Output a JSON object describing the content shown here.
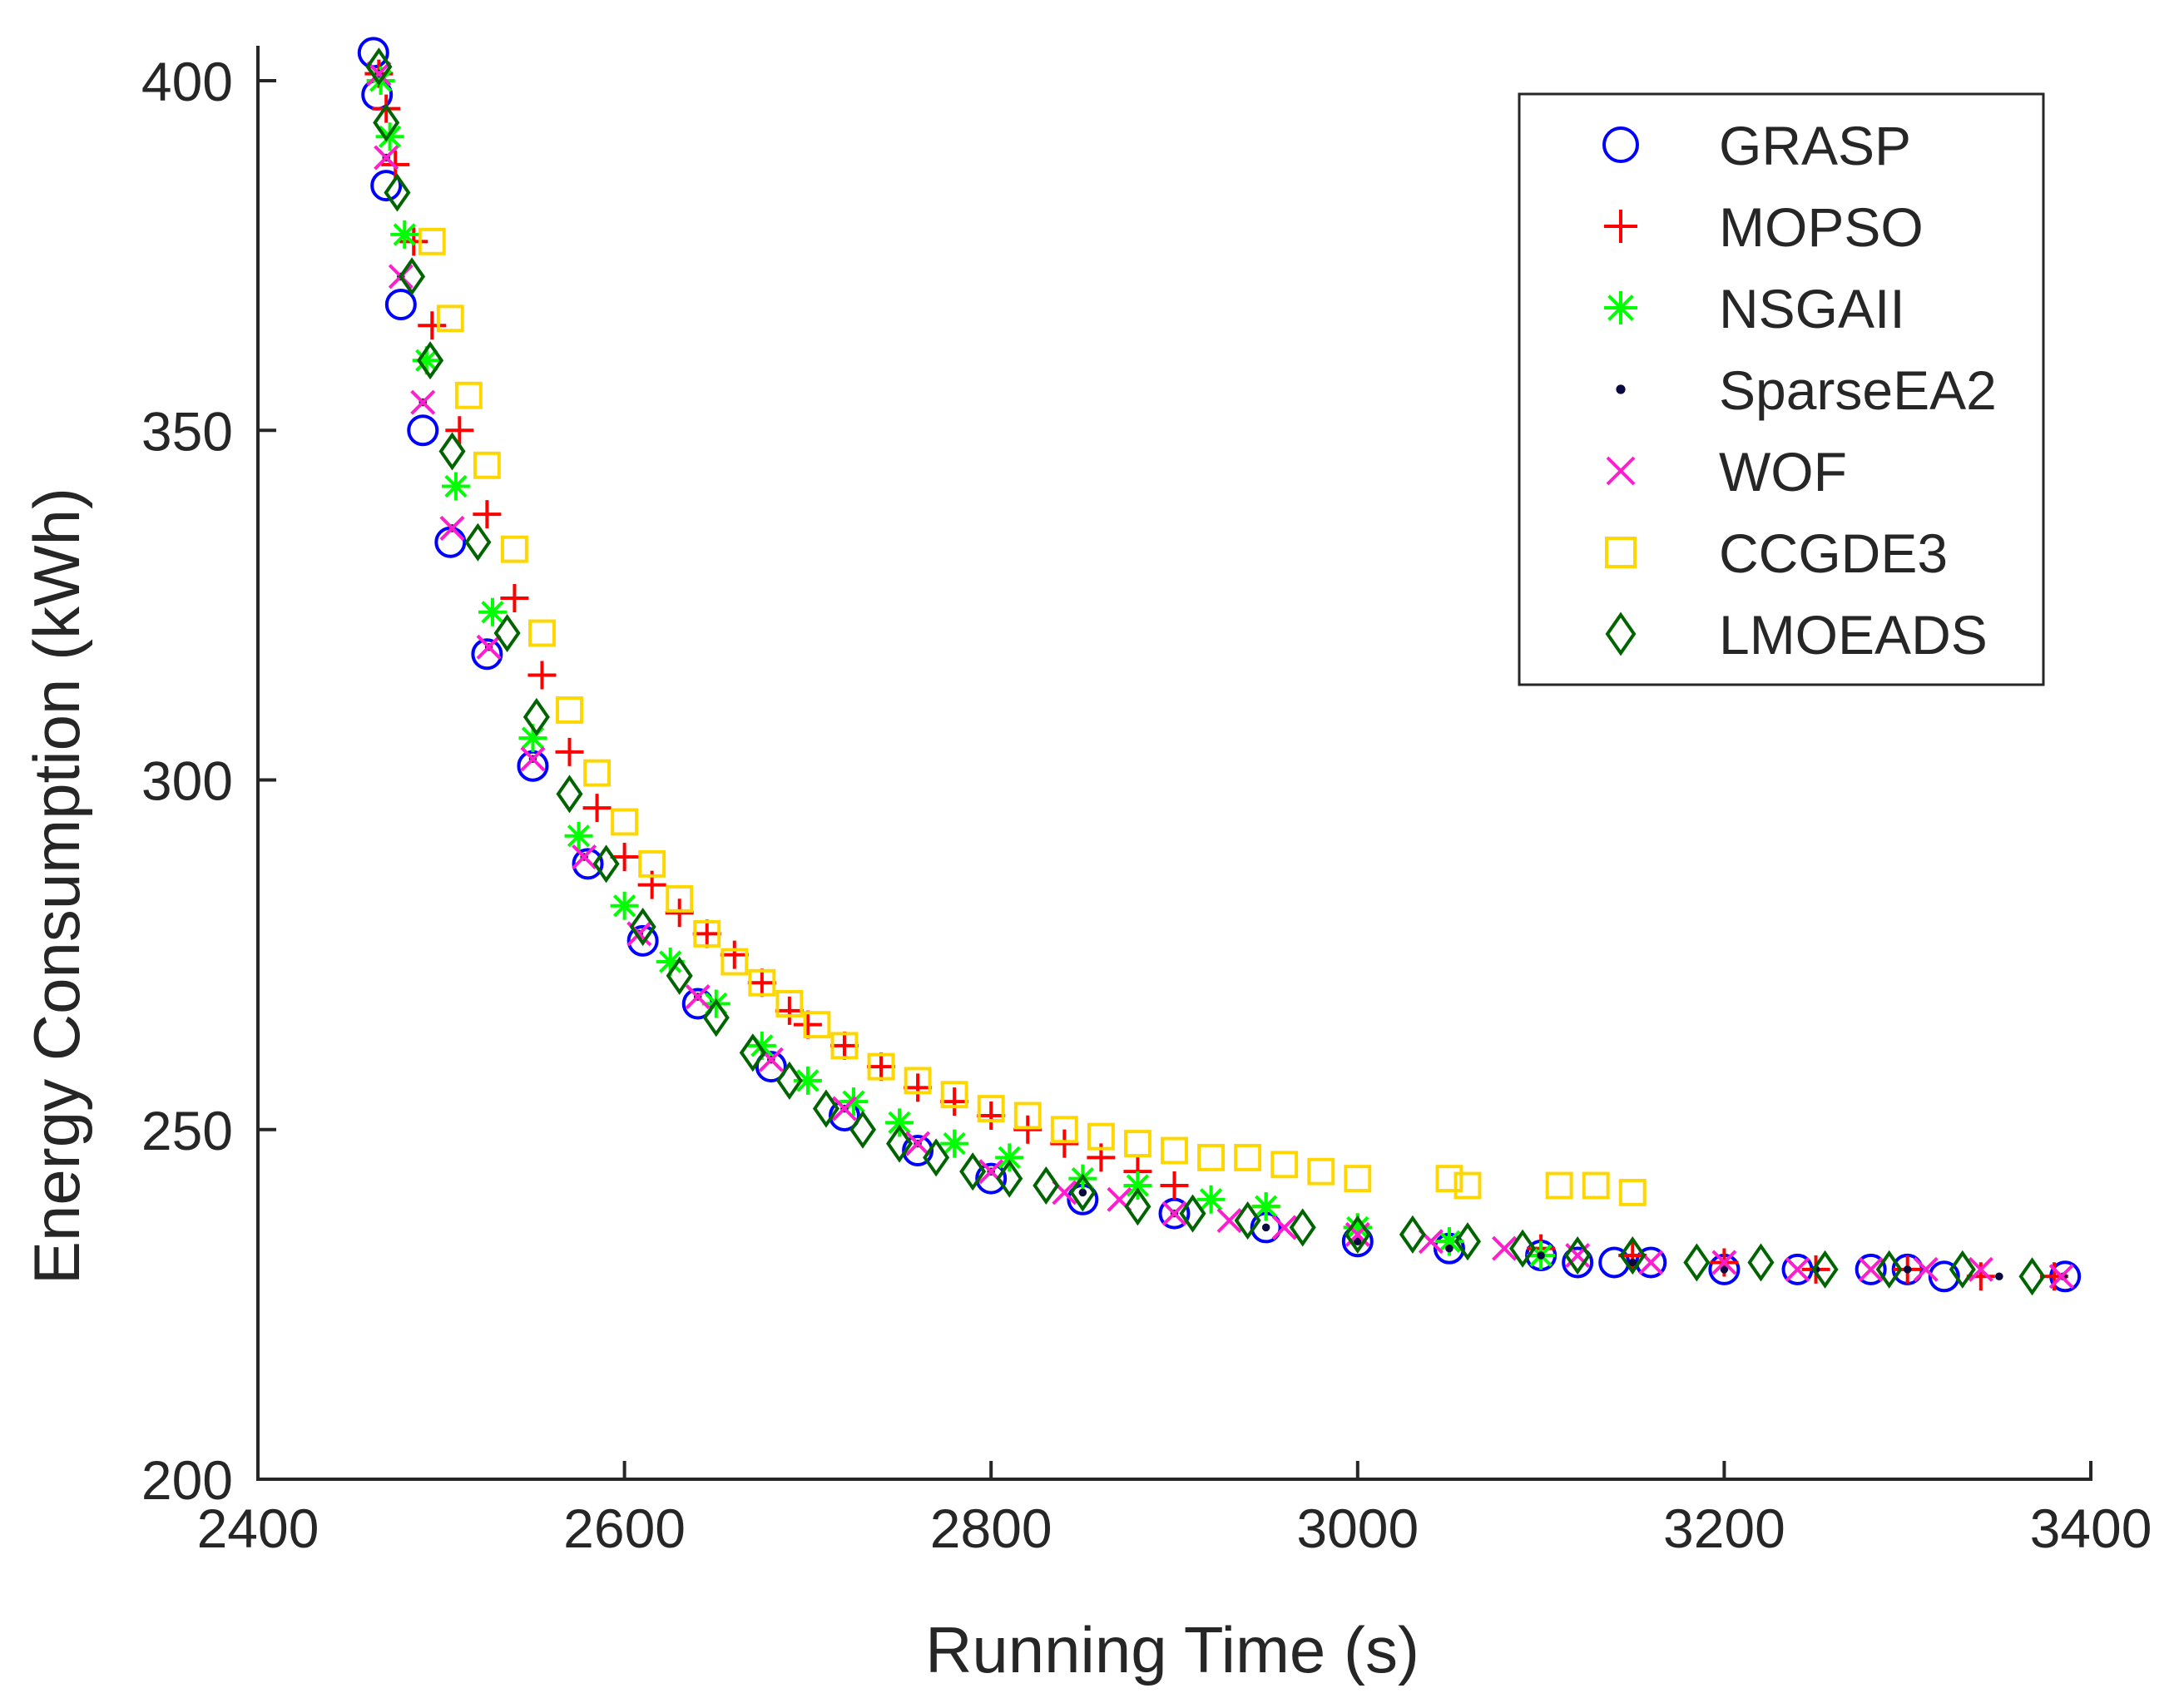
{
  "chart_data": {
    "type": "scatter",
    "title": "",
    "xlabel": "Running Time (s)",
    "ylabel": "Energy Consumption (kWh)",
    "xlim": [
      2400,
      3400
    ],
    "ylim": [
      200,
      405
    ],
    "x_ticks": [
      2400,
      2600,
      2800,
      3000,
      3200,
      3400
    ],
    "x_tick_labels": [
      "2400",
      "2600",
      "2800",
      "3000",
      "3200",
      "3400"
    ],
    "y_ticks": [
      200,
      250,
      300,
      350,
      400
    ],
    "y_tick_labels": [
      "200",
      "250",
      "300",
      "350",
      "400"
    ],
    "grid": false,
    "legend_position": "top-right",
    "series": [
      {
        "name": "GRASP",
        "marker": "circle",
        "color": "#0000ff",
        "x": [
          2463,
          2465,
          2470,
          2478,
          2490,
          2505,
          2525,
          2550,
          2580,
          2610,
          2640,
          2680,
          2720,
          2760,
          2800,
          2850,
          2900,
          2950,
          3000,
          3050,
          3100,
          3120,
          3140,
          3160,
          3200,
          3240,
          3280,
          3300,
          3320,
          3386
        ],
        "y": [
          404,
          398,
          385,
          368,
          350,
          334,
          318,
          302,
          288,
          277,
          268,
          259,
          252,
          247,
          243,
          240,
          238,
          236,
          234,
          233,
          232,
          231,
          231,
          231,
          230,
          230,
          230,
          230,
          229,
          229
        ]
      },
      {
        "name": "MOPSO",
        "marker": "plus",
        "color": "#ff0000",
        "x": [
          2466,
          2470,
          2475,
          2485,
          2495,
          2510,
          2525,
          2540,
          2555,
          2570,
          2585,
          2600,
          2615,
          2630,
          2645,
          2660,
          2675,
          2690,
          2700,
          2720,
          2740,
          2760,
          2780,
          2800,
          2820,
          2840,
          2860,
          2880,
          2900,
          2950,
          3000,
          3050,
          3100,
          3150,
          3200,
          3250,
          3300,
          3340,
          3380
        ],
        "y": [
          401,
          396,
          388,
          377,
          365,
          350,
          338,
          326,
          315,
          304,
          296,
          289,
          285,
          281,
          278,
          275,
          271,
          267,
          265,
          262,
          259,
          256,
          254,
          252,
          250,
          248,
          246,
          244,
          242,
          239,
          236,
          234,
          233,
          232,
          231,
          230,
          230,
          229,
          229
        ]
      },
      {
        "name": "NSGAII",
        "marker": "asterisk",
        "color": "#00ff00",
        "x": [
          2467,
          2472,
          2480,
          2492,
          2508,
          2528,
          2550,
          2575,
          2600,
          2625,
          2650,
          2675,
          2700,
          2725,
          2750,
          2780,
          2810,
          2850,
          2880,
          2920,
          2950,
          3000,
          3050,
          3100
        ],
        "y": [
          400,
          392,
          378,
          360,
          342,
          324,
          306,
          292,
          282,
          274,
          268,
          262,
          257,
          254,
          251,
          248,
          246,
          243,
          242,
          240,
          239,
          236,
          234,
          232
        ]
      },
      {
        "name": "SparseEA2",
        "marker": "dot",
        "color": "#0a0a40",
        "x": [
          2466,
          2470,
          2478,
          2490,
          2506,
          2526,
          2550,
          2578,
          2608,
          2640,
          2680,
          2720,
          2760,
          2800,
          2850,
          2900,
          2950,
          3000,
          3050,
          3100,
          3150,
          3200,
          3250,
          3300,
          3350,
          3385
        ],
        "y": [
          401,
          389,
          372,
          354,
          336,
          319,
          303,
          289,
          278,
          269,
          260,
          253,
          248,
          244,
          241,
          238,
          236,
          234,
          233,
          232,
          231,
          230,
          230,
          230,
          229,
          229
        ]
      },
      {
        "name": "WOF",
        "marker": "cross",
        "color": "#ff1dce",
        "x": [
          2466,
          2470,
          2478,
          2490,
          2506,
          2526,
          2550,
          2578,
          2608,
          2640,
          2680,
          2720,
          2760,
          2800,
          2840,
          2870,
          2900,
          2930,
          2960,
          3000,
          3040,
          3080,
          3120,
          3160,
          3200,
          3240,
          3280,
          3310,
          3340,
          3384
        ],
        "y": [
          401,
          389,
          372,
          354,
          336,
          319,
          303,
          289,
          278,
          269,
          260,
          253,
          248,
          244,
          241,
          240,
          238,
          237,
          236,
          235,
          234,
          233,
          232,
          231,
          231,
          230,
          230,
          230,
          230,
          229
        ]
      },
      {
        "name": "CCGDE3",
        "marker": "square",
        "color": "#ffd700",
        "x": [
          2495,
          2505,
          2515,
          2525,
          2540,
          2555,
          2570,
          2585,
          2600,
          2615,
          2630,
          2645,
          2660,
          2675,
          2690,
          2705,
          2720,
          2740,
          2760,
          2780,
          2800,
          2820,
          2840,
          2860,
          2880,
          2900,
          2920,
          2940,
          2960,
          2980,
          3000,
          3050,
          3060,
          3110,
          3130,
          3150
        ],
        "y": [
          377,
          366,
          355,
          345,
          333,
          321,
          310,
          301,
          294,
          288,
          283,
          278,
          274,
          271,
          268,
          265,
          262,
          259,
          257,
          255,
          253,
          252,
          250,
          249,
          248,
          247,
          246,
          246,
          245,
          244,
          243,
          243,
          242,
          242,
          242,
          241
        ]
      },
      {
        "name": "LMOEADS",
        "marker": "diamond",
        "color": "#006400",
        "x": [
          2466,
          2470,
          2476,
          2484,
          2494,
          2506,
          2520,
          2536,
          2552,
          2570,
          2590,
          2610,
          2630,
          2650,
          2670,
          2690,
          2710,
          2730,
          2750,
          2770,
          2790,
          2810,
          2830,
          2850,
          2880,
          2910,
          2940,
          2970,
          3000,
          3030,
          3060,
          3090,
          3120,
          3150,
          3185,
          3220,
          3255,
          3290,
          3330,
          3368
        ],
        "y": [
          402,
          394,
          384,
          372,
          360,
          347,
          334,
          321,
          309,
          298,
          288,
          279,
          272,
          266,
          261,
          257,
          253,
          250,
          248,
          246,
          244,
          243,
          242,
          241,
          239,
          238,
          237,
          236,
          235,
          235,
          234,
          233,
          232,
          232,
          231,
          231,
          230,
          230,
          230,
          229
        ]
      }
    ]
  }
}
